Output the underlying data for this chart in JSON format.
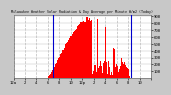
{
  "title": "Milwaukee Weather Solar Radiation & Day Average per Minute W/m2 (Today)",
  "bg_color": "#c8c8c8",
  "plot_bg_color": "#ffffff",
  "bar_color": "#ff0000",
  "line_color": "#0000cc",
  "grid_color": "#bbbbbb",
  "x_min": 0,
  "x_max": 1440,
  "y_min": 0,
  "y_max": 925,
  "y_ticks": [
    100,
    200,
    300,
    400,
    500,
    600,
    700,
    800,
    900
  ],
  "blue_line1": 415,
  "blue_line2": 1225,
  "sunrise_min": 355,
  "sunset_min": 1250,
  "peak_min": 740,
  "peak_val": 865,
  "x_tick_hours": [
    0,
    2,
    4,
    6,
    8,
    10,
    12,
    14,
    16,
    18,
    20,
    22,
    24
  ],
  "x_tick_labels": [
    "12a",
    "2",
    "4",
    "6",
    "8",
    "10",
    "12p",
    "2",
    "4",
    "6",
    "8",
    "10",
    ""
  ]
}
